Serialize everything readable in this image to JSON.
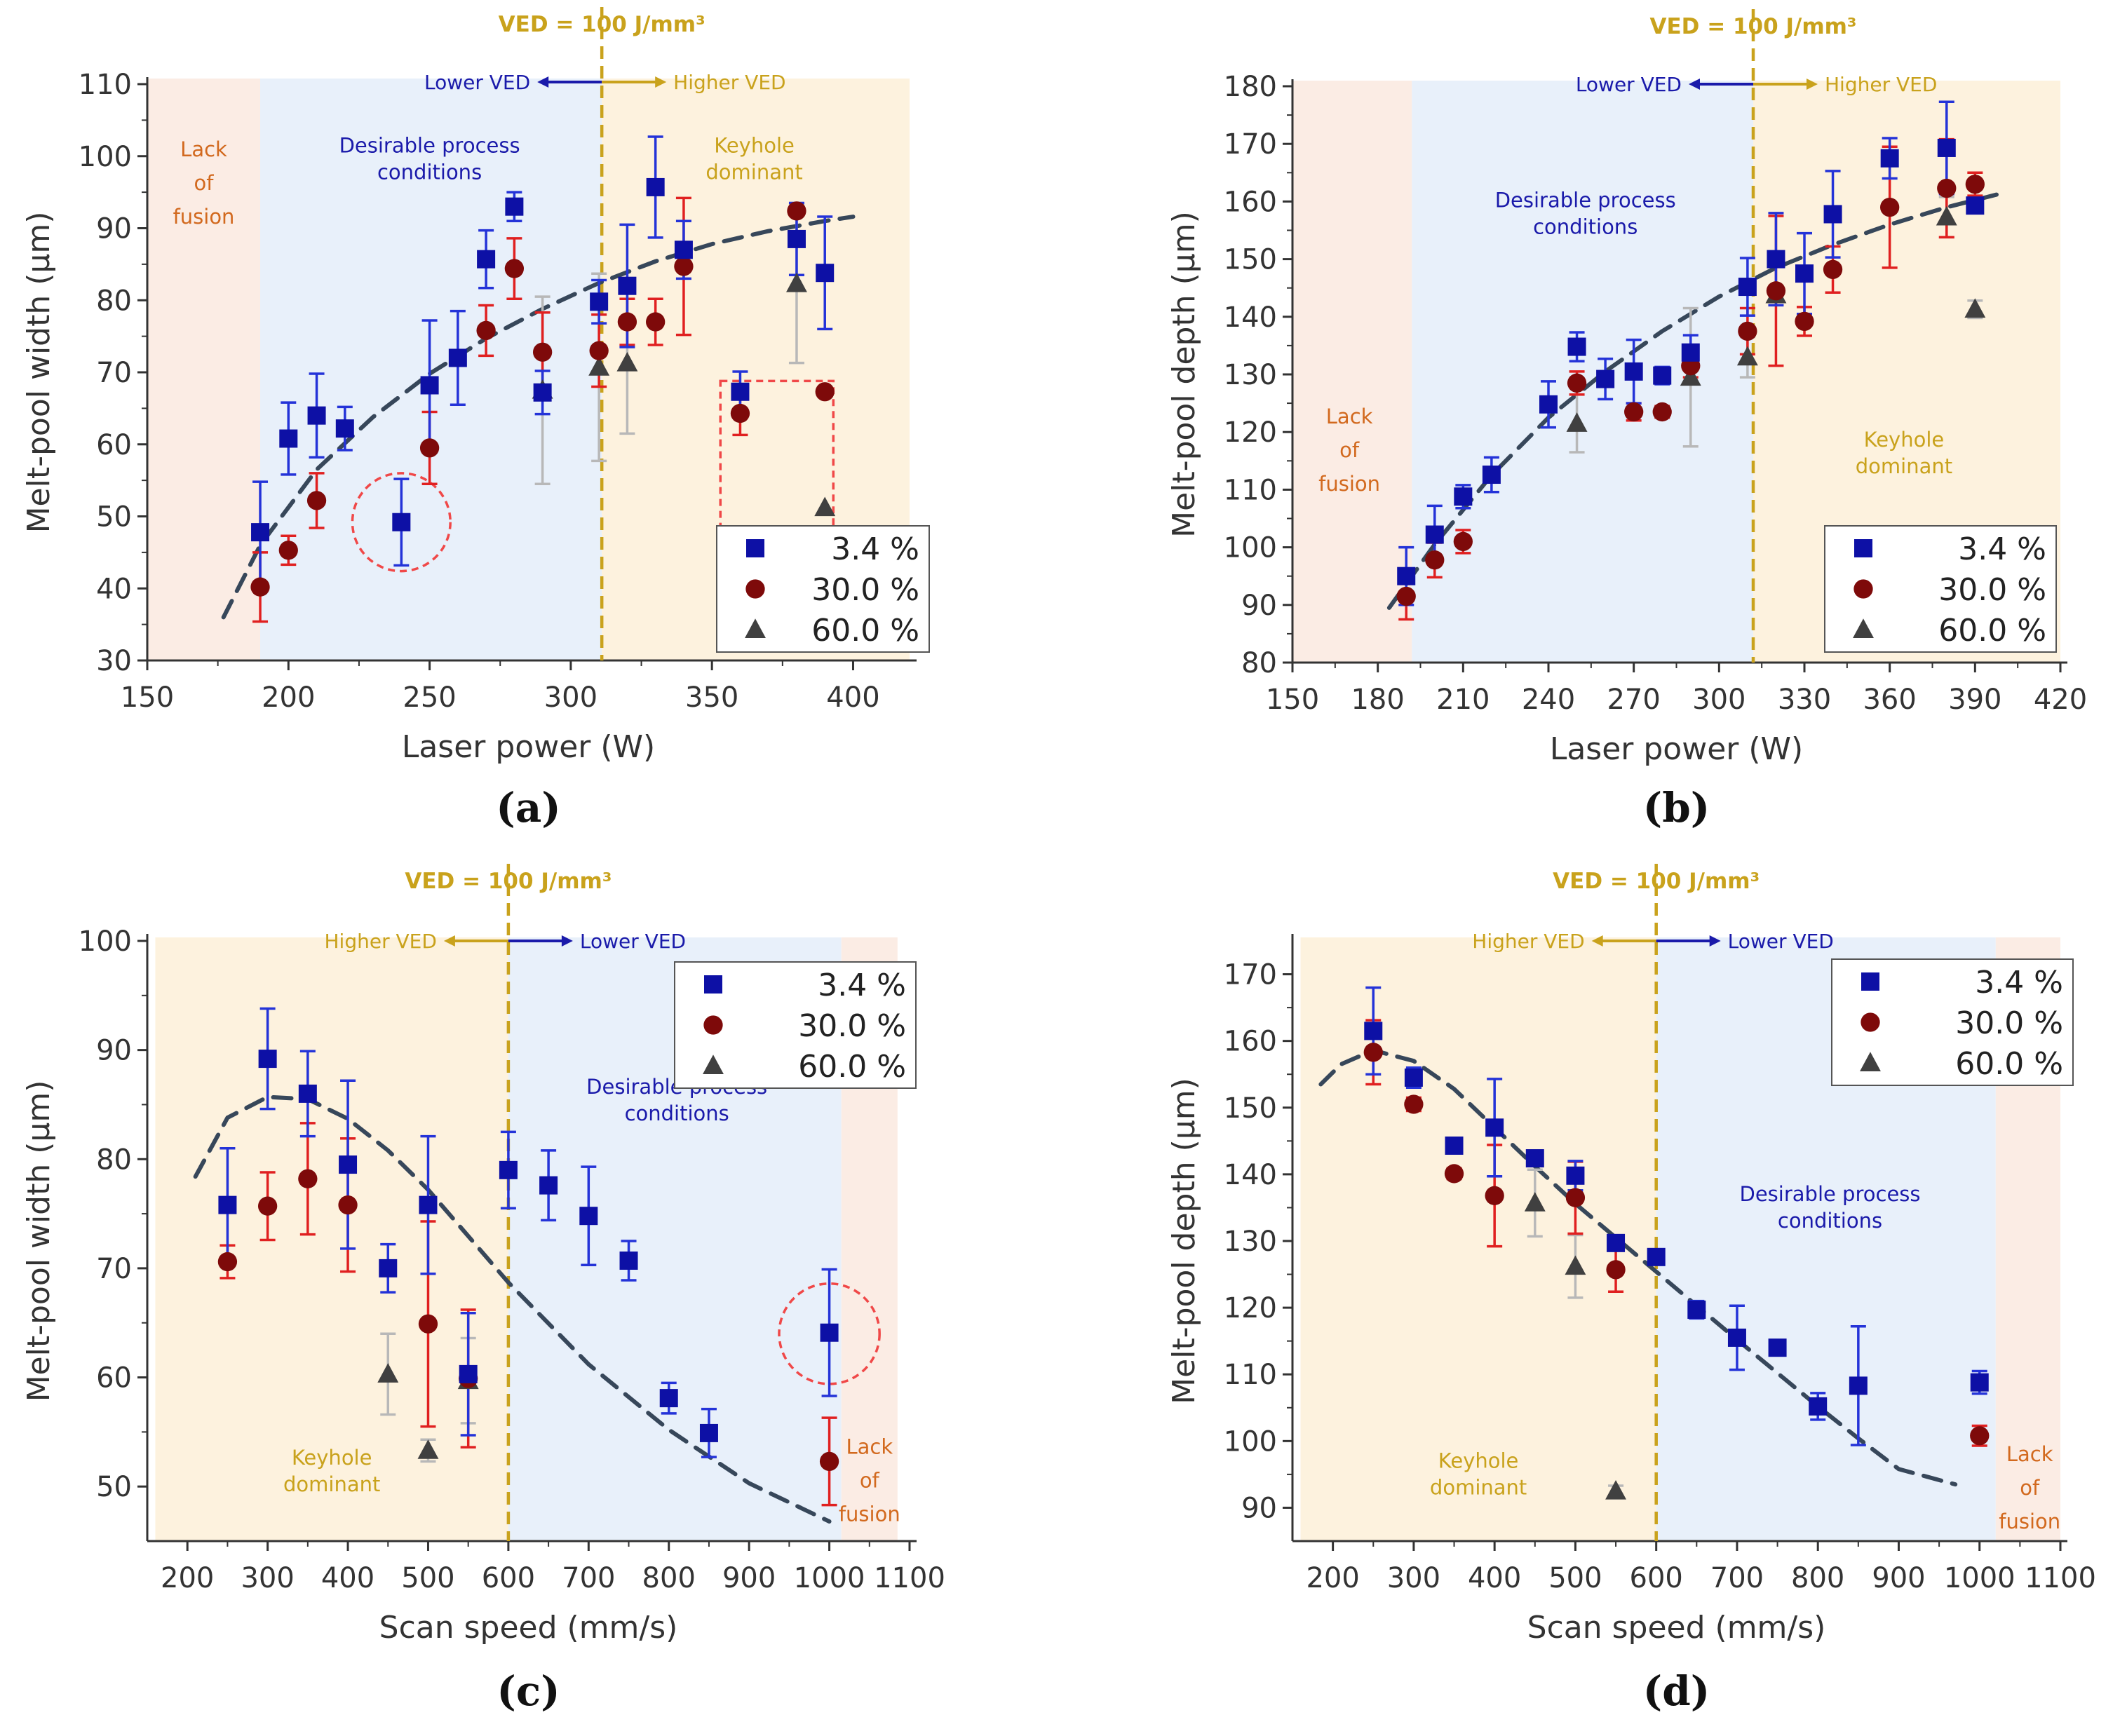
{
  "colors": {
    "blue_series": "#0d10a5",
    "red_series": "#7e0a0a",
    "gray_series": "#404040",
    "err_blue": "#2433d8",
    "err_red": "#e02020",
    "err_gray": "#b8b8b8",
    "ved_line": "#c9a21c",
    "ved_text": "#c9a21c",
    "region_lack": "#fbece4",
    "region_desirable": "#e8f0fa",
    "region_keyhole": "#fdf2de",
    "text_lack": "#d2691e",
    "text_desirable": "#1a1aaa",
    "text_keyhole": "#c9a21c",
    "text_lower": "#1a1aaa",
    "text_higher": "#c9a21c",
    "trend": "#37475a",
    "highlight": "#f04848"
  },
  "chart_data": [
    {
      "panel_label": "(a)",
      "type": "scatter",
      "xlabel": "Laser power (W)",
      "ylabel": "Melt-pool width (μm)",
      "xlim": [
        150,
        420
      ],
      "ylim": [
        30,
        110
      ],
      "xticks": [
        150,
        200,
        250,
        300,
        350,
        400
      ],
      "yticks": [
        30,
        40,
        50,
        60,
        70,
        80,
        90,
        100,
        110
      ],
      "ved_x": 311,
      "ved_label": "VED = 100 J/mm³",
      "lower_label": "Lower VED",
      "higher_label": "Higher VED",
      "lower_side": "left",
      "regions": [
        {
          "x0": 150,
          "x1": 190,
          "kind": "lack",
          "label_lines": [
            "Lack",
            "of",
            "fusion"
          ],
          "label_x": 170,
          "label_y": 100
        },
        {
          "x0": 190,
          "x1": 311,
          "kind": "desirable",
          "label_lines": [
            "Desirable process",
            "conditions"
          ],
          "label_x": 250,
          "label_y": 100.5
        },
        {
          "x0": 311,
          "x1": 420,
          "kind": "keyhole",
          "label_lines": [
            "Keyhole",
            "dominant"
          ],
          "label_x": 365,
          "label_y": 100.5
        }
      ],
      "legend": {
        "placement": "bottom-right",
        "entries": [
          "3.4 %",
          "30.0 %",
          "60.0 %"
        ]
      },
      "series": [
        {
          "name": "3.4 %",
          "marker": "square",
          "x": [
            190,
            200,
            210,
            220,
            240,
            250,
            260,
            270,
            280,
            290,
            310,
            320,
            330,
            340,
            360,
            380,
            390
          ],
          "y": [
            47.8,
            60.8,
            64.0,
            62.2,
            49.2,
            68.2,
            72.0,
            85.7,
            93.0,
            67.2,
            79.8,
            82.0,
            95.7,
            87.0,
            67.3,
            88.5,
            83.8
          ],
          "err": [
            7,
            5,
            5.8,
            3,
            6,
            9,
            6.5,
            4,
            2,
            3,
            3,
            8.5,
            7,
            4,
            2.8,
            5,
            7.8
          ]
        },
        {
          "name": "30.0 %",
          "marker": "circle",
          "x": [
            190,
            200,
            210,
            250,
            270,
            280,
            290,
            310,
            320,
            330,
            340,
            360,
            380,
            390
          ],
          "y": [
            40.2,
            45.3,
            52.2,
            59.5,
            75.8,
            84.4,
            72.8,
            73.0,
            77.0,
            77.0,
            84.7,
            64.3,
            92.4,
            67.3
          ],
          "err": [
            4.8,
            2,
            3.8,
            5,
            3.5,
            4.2,
            5.5,
            5,
            3.2,
            3.2,
            9.5,
            3,
            0.5,
            0
          ]
        },
        {
          "name": "60.0 %",
          "marker": "triangle",
          "x": [
            290,
            310,
            320,
            380,
            390
          ],
          "y": [
            67.5,
            70.7,
            71.3,
            82.3,
            51.2
          ],
          "err": [
            13,
            13,
            9.8,
            11,
            0
          ]
        }
      ],
      "trend": {
        "x": [
          177,
          190,
          210,
          230,
          250,
          270,
          290,
          310,
          330,
          350,
          370,
          390,
          400
        ],
        "y": [
          36.0,
          46.0,
          56.5,
          63.8,
          69.8,
          74.7,
          78.8,
          82.4,
          85.4,
          87.8,
          89.6,
          91.0,
          91.6
        ]
      },
      "highlights": [
        {
          "shape": "circle",
          "cx": 240,
          "cy": 49.2,
          "rx": 16,
          "ry": 6.8
        },
        {
          "shape": "rect",
          "x0": 353,
          "x1": 393,
          "y0": 48.5,
          "y1": 68.8
        }
      ]
    },
    {
      "panel_label": "(b)",
      "type": "scatter",
      "xlabel": "Laser power (W)",
      "ylabel": "Melt-pool depth (μm)",
      "xlim": [
        150,
        420
      ],
      "ylim": [
        80,
        180
      ],
      "xticks": [
        150,
        180,
        210,
        240,
        270,
        300,
        330,
        360,
        390,
        420
      ],
      "yticks": [
        80,
        90,
        100,
        110,
        120,
        130,
        140,
        150,
        160,
        170,
        180
      ],
      "ved_x": 312,
      "ved_label": "VED = 100 J/mm³",
      "lower_label": "Lower VED",
      "higher_label": "Higher VED",
      "lower_side": "left",
      "regions": [
        {
          "x0": 150,
          "x1": 192,
          "kind": "lack",
          "label_lines": [
            "Lack",
            "of",
            "fusion"
          ],
          "label_x": 170,
          "label_y": 121.5
        },
        {
          "x0": 192,
          "x1": 312,
          "kind": "desirable",
          "label_lines": [
            "Desirable process",
            "conditions"
          ],
          "label_x": 253,
          "label_y": 159
        },
        {
          "x0": 312,
          "x1": 420,
          "kind": "keyhole",
          "label_lines": [
            "Keyhole",
            "dominant"
          ],
          "label_x": 365,
          "label_y": 117.5
        }
      ],
      "legend": {
        "placement": "bottom-right",
        "entries": [
          "3.4 %",
          "30.0 %",
          "60.0 %"
        ]
      },
      "series": [
        {
          "name": "3.4 %",
          "marker": "square",
          "x": [
            190,
            200,
            210,
            220,
            240,
            250,
            260,
            270,
            280,
            290,
            310,
            320,
            330,
            340,
            360,
            380,
            390
          ],
          "y": [
            95.0,
            102.2,
            108.8,
            112.6,
            124.8,
            134.8,
            129.2,
            130.5,
            129.8,
            133.8,
            145.2,
            150.0,
            147.5,
            157.8,
            167.5,
            169.3,
            159.3
          ],
          "err": [
            5,
            5,
            2,
            3,
            4,
            2.5,
            3.5,
            5.5,
            1.5,
            3,
            5,
            8,
            7,
            7.5,
            3.5,
            8,
            1
          ]
        },
        {
          "name": "30.0 %",
          "marker": "circle",
          "x": [
            190,
            200,
            210,
            250,
            270,
            280,
            290,
            310,
            320,
            330,
            340,
            360,
            380,
            390
          ],
          "y": [
            91.5,
            97.8,
            101.0,
            128.5,
            123.5,
            123.5,
            131.5,
            137.5,
            144.5,
            139.2,
            148.2,
            159.0,
            162.3,
            163.0
          ],
          "err": [
            4,
            3,
            2,
            2,
            1.5,
            1,
            2,
            4,
            13,
            2.5,
            4,
            10.5,
            8.5,
            2
          ]
        },
        {
          "name": "60.0 %",
          "marker": "triangle",
          "x": [
            250,
            290,
            310,
            320,
            380,
            390
          ],
          "y": [
            121.5,
            129.5,
            133.0,
            143.8,
            157.3,
            141.3
          ],
          "err": [
            5,
            12,
            3.5,
            1,
            3.5,
            1.5
          ]
        }
      ],
      "trend": {
        "x": [
          184,
          200,
          220,
          240,
          260,
          280,
          300,
          320,
          340,
          360,
          380,
          400
        ],
        "y": [
          89.5,
          100.5,
          112.5,
          122.5,
          130.5,
          137.5,
          143.5,
          148.5,
          152.5,
          156.0,
          159.0,
          161.5
        ]
      },
      "highlights": []
    },
    {
      "panel_label": "(c)",
      "type": "scatter",
      "xlabel": "Scan speed (mm/s)",
      "ylabel": "Melt-pool width (μm)",
      "xlim": [
        150,
        1100
      ],
      "ylim": [
        45,
        100
      ],
      "xticks": [
        200,
        300,
        400,
        500,
        600,
        700,
        800,
        900,
        1000,
        1100
      ],
      "xtick_labels": [
        "200",
        "300",
        "400",
        "500",
        "600",
        "700",
        "800",
        "900",
        "1000",
        "1100"
      ],
      "yticks": [
        50,
        60,
        70,
        80,
        90,
        100
      ],
      "ved_x": 600,
      "ved_label": "VED = 100 J/mm³",
      "lower_label": "Lower VED",
      "higher_label": "Higher VED",
      "lower_side": "right",
      "shade_x0": 160,
      "shade_x1": 1085,
      "regions": [
        {
          "x0": 160,
          "x1": 600,
          "kind": "keyhole",
          "label_lines": [
            "Keyhole",
            "dominant"
          ],
          "label_x": 380,
          "label_y": 52
        },
        {
          "x0": 600,
          "x1": 1015,
          "kind": "desirable",
          "label_lines": [
            "Desirable process",
            "conditions"
          ],
          "label_x": 810,
          "label_y": 86
        },
        {
          "x0": 1015,
          "x1": 1085,
          "kind": "lack",
          "label_lines": [
            "Lack",
            "of",
            "fusion"
          ],
          "label_x": 1050,
          "label_y": 53
        }
      ],
      "legend": {
        "placement": "top-right",
        "entries": [
          "3.4 %",
          "30.0 %",
          "60.0 %"
        ]
      },
      "series": [
        {
          "name": "3.4 %",
          "marker": "square",
          "x": [
            250,
            300,
            350,
            400,
            450,
            500,
            550,
            600,
            650,
            700,
            750,
            800,
            850,
            1000
          ],
          "y": [
            75.8,
            89.2,
            86.0,
            79.5,
            70.0,
            75.8,
            60.3,
            79.0,
            77.6,
            74.8,
            70.7,
            58.1,
            54.9,
            64.1
          ],
          "err": [
            5.2,
            4.6,
            3.9,
            7.7,
            2.2,
            6.3,
            5.6,
            3.5,
            3.2,
            4.5,
            1.8,
            1.4,
            2.2,
            5.8
          ]
        },
        {
          "name": "30.0 %",
          "marker": "circle",
          "x": [
            250,
            300,
            350,
            400,
            500,
            550,
            1000
          ],
          "y": [
            70.6,
            75.7,
            78.2,
            75.8,
            64.9,
            59.9,
            52.3
          ],
          "err": [
            1.5,
            3.1,
            5.1,
            6.1,
            9.4,
            6.3,
            4.0
          ]
        },
        {
          "name": "60.0 %",
          "marker": "triangle",
          "x": [
            450,
            500,
            550
          ],
          "y": [
            60.3,
            53.3,
            59.7
          ],
          "err": [
            3.7,
            1,
            3.9
          ]
        }
      ],
      "trend": {
        "x": [
          210,
          250,
          300,
          350,
          400,
          450,
          500,
          600,
          700,
          800,
          900,
          1000
        ],
        "y": [
          78.4,
          83.8,
          85.7,
          85.5,
          83.7,
          80.8,
          77.2,
          68.7,
          61.2,
          55.2,
          50.3,
          46.8
        ]
      },
      "highlights": [
        {
          "shape": "circle",
          "cx": 1000,
          "cy": 64,
          "rx": 62,
          "ry": 4.6
        }
      ]
    },
    {
      "panel_label": "(d)",
      "type": "scatter",
      "xlabel": "Scan speed (mm/s)",
      "ylabel": "Melt-pool depth (μm)",
      "xlim": [
        150,
        1100
      ],
      "ylim": [
        85,
        175
      ],
      "xticks": [
        200,
        300,
        400,
        500,
        600,
        700,
        800,
        900,
        1000,
        1100
      ],
      "xtick_labels": [
        "200",
        "300",
        "400",
        "500",
        "600",
        "700",
        "800",
        "900",
        "1000",
        "1100"
      ],
      "yticks": [
        90,
        100,
        110,
        120,
        130,
        140,
        150,
        160,
        170
      ],
      "ved_x": 600,
      "ved_label": "VED = 100 J/mm³",
      "lower_label": "Lower VED",
      "higher_label": "Higher VED",
      "lower_side": "right",
      "shade_x0": 160,
      "shade_x1": 1100,
      "regions": [
        {
          "x0": 160,
          "x1": 600,
          "kind": "keyhole",
          "label_lines": [
            "Keyhole",
            "dominant"
          ],
          "label_x": 380,
          "label_y": 96
        },
        {
          "x0": 600,
          "x1": 1020,
          "kind": "desirable",
          "label_lines": [
            "Desirable process",
            "conditions"
          ],
          "label_x": 815,
          "label_y": 136
        },
        {
          "x0": 1020,
          "x1": 1100,
          "kind": "lack",
          "label_lines": [
            "Lack",
            "of",
            "fusion"
          ],
          "label_x": 1062,
          "label_y": 97
        }
      ],
      "legend": {
        "placement": "top-right",
        "entries": [
          "3.4 %",
          "30.0 %",
          "60.0 %"
        ]
      },
      "series": [
        {
          "name": "3.4 %",
          "marker": "square",
          "x": [
            250,
            300,
            350,
            400,
            450,
            500,
            550,
            600,
            650,
            700,
            750,
            800,
            850,
            1000
          ],
          "y": [
            161.5,
            154.5,
            144.3,
            147.0,
            142.4,
            139.8,
            129.7,
            127.6,
            119.7,
            115.5,
            114.0,
            105.2,
            108.3,
            108.8
          ],
          "err": [
            6.5,
            1.5,
            0.8,
            7.3,
            1.1,
            2.2,
            1.0,
            0.8,
            1.3,
            4.8,
            0.8,
            2.0,
            8.9,
            1.7
          ]
        },
        {
          "name": "30.0 %",
          "marker": "circle",
          "x": [
            250,
            300,
            350,
            400,
            500,
            550,
            1000
          ],
          "y": [
            158.3,
            150.5,
            140.1,
            136.8,
            136.5,
            125.7,
            100.8
          ],
          "err": [
            4.8,
            1.0,
            0.8,
            7.6,
            5.4,
            3.3,
            1.5
          ]
        },
        {
          "name": "60.0 %",
          "marker": "triangle",
          "x": [
            450,
            500,
            550
          ],
          "y": [
            135.7,
            126.2,
            92.5
          ],
          "err": [
            5.0,
            4.7,
            0.8
          ]
        }
      ],
      "trend": {
        "x": [
          185,
          210,
          250,
          300,
          350,
          400,
          450,
          500,
          550,
          600,
          650,
          700,
          750,
          800,
          850,
          900,
          970
        ],
        "y": [
          153.5,
          156.5,
          158.6,
          157.0,
          152.8,
          147.0,
          141.2,
          135.6,
          130.5,
          125.4,
          120.3,
          115.2,
          110.2,
          105.2,
          100.4,
          95.8,
          93.5
        ]
      },
      "highlights": []
    }
  ]
}
